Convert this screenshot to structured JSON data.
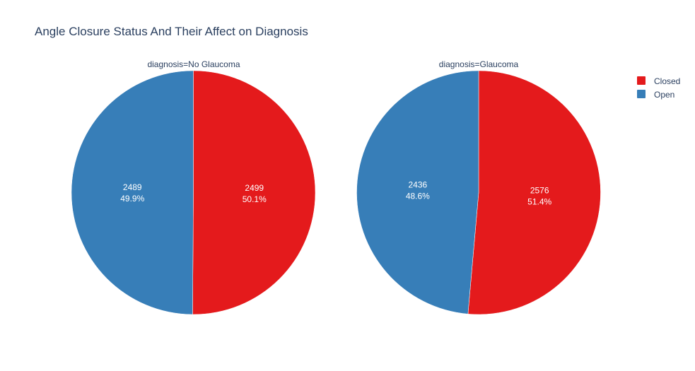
{
  "chart_data": {
    "type": "pie",
    "title": "Angle Closure Status And Their Affect on Diagnosis",
    "legend": {
      "placement": "top-right",
      "entries": [
        {
          "label": "Closed",
          "color": "#e41a1c"
        },
        {
          "label": "Open",
          "color": "#377eb8"
        }
      ]
    },
    "pies": [
      {
        "subtitle": "diagnosis=No Glaucoma",
        "slices": [
          {
            "label": "Closed",
            "value": 2499,
            "percent": "50.1%",
            "value_text": "2499",
            "color": "#e41a1c"
          },
          {
            "label": "Open",
            "value": 2489,
            "percent": "49.9%",
            "value_text": "2489",
            "color": "#377eb8"
          }
        ]
      },
      {
        "subtitle": "diagnosis=Glaucoma",
        "slices": [
          {
            "label": "Closed",
            "value": 2576,
            "percent": "51.4%",
            "value_text": "2576",
            "color": "#e41a1c"
          },
          {
            "label": "Open",
            "value": 2436,
            "percent": "48.6%",
            "value_text": "2436",
            "color": "#377eb8"
          }
        ]
      }
    ]
  }
}
